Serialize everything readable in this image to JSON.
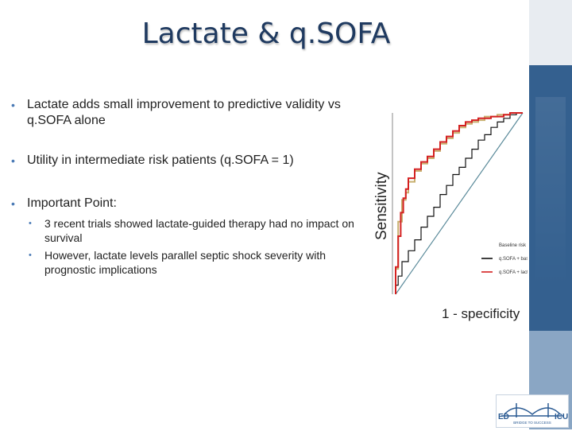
{
  "slide": {
    "title": "Lactate & q.SOFA",
    "bullets": [
      {
        "text": "Lactate adds small improvement to predictive validity vs q.SOFA alone",
        "sub": []
      },
      {
        "text": "Utility in intermediate risk patients (q.SOFA = 1)",
        "sub": []
      },
      {
        "text": "Important Point:",
        "sub": [
          "3 recent trials showed lactate-guided therapy had no impact on survival",
          "However, lactate levels parallel septic shock severity with prognostic implications"
        ]
      }
    ]
  },
  "chart_data": {
    "type": "line",
    "xlabel": "1 - specificity",
    "ylabel": "Sensitivity",
    "xlim": [
      0,
      1
    ],
    "ylim": [
      0,
      1
    ],
    "legend_placement": "bottom-right",
    "series": [
      {
        "name": "Baseline risk",
        "color": "#5a8a9a",
        "x": [
          0,
          1
        ],
        "y": [
          0,
          1
        ]
      },
      {
        "name": "q.SOFA + baseline",
        "color": "#111111",
        "x": [
          0,
          0.02,
          0.05,
          0.1,
          0.15,
          0.2,
          0.25,
          0.3,
          0.35,
          0.4,
          0.45,
          0.5,
          0.55,
          0.6,
          0.65,
          0.7,
          0.75,
          0.8,
          0.85,
          0.9,
          0.95,
          1.0
        ],
        "y": [
          0,
          0.05,
          0.1,
          0.18,
          0.24,
          0.3,
          0.37,
          0.43,
          0.48,
          0.55,
          0.6,
          0.66,
          0.7,
          0.75,
          0.8,
          0.85,
          0.88,
          0.92,
          0.95,
          0.97,
          0.99,
          1.0
        ]
      },
      {
        "name": "q.SOFA + lactate ≥2.0 + baseline",
        "color": "#d42020",
        "x": [
          0,
          0.02,
          0.04,
          0.06,
          0.08,
          0.1,
          0.15,
          0.2,
          0.25,
          0.3,
          0.35,
          0.4,
          0.45,
          0.5,
          0.55,
          0.6,
          0.65,
          0.7,
          0.75,
          0.8,
          0.85,
          0.9,
          0.95,
          1.0
        ],
        "y": [
          0,
          0.15,
          0.32,
          0.45,
          0.53,
          0.58,
          0.64,
          0.69,
          0.73,
          0.76,
          0.8,
          0.84,
          0.87,
          0.9,
          0.93,
          0.95,
          0.96,
          0.97,
          0.97,
          0.98,
          0.98,
          0.99,
          1.0,
          1.0
        ]
      },
      {
        "name": "",
        "color": "#c8b070",
        "x": [
          0,
          0.02,
          0.05,
          0.08,
          0.1,
          0.15,
          0.2,
          0.25,
          0.3,
          0.35,
          0.4,
          0.45,
          0.5,
          0.55,
          0.6,
          0.65,
          0.7,
          0.8,
          0.9,
          1.0
        ],
        "y": [
          0,
          0.14,
          0.4,
          0.52,
          0.56,
          0.62,
          0.68,
          0.72,
          0.75,
          0.79,
          0.83,
          0.86,
          0.89,
          0.92,
          0.94,
          0.95,
          0.96,
          0.98,
          0.99,
          1.0
        ]
      }
    ],
    "legend": [
      "Baseline risk",
      "q.SOFA + baseline",
      "q.SOFA + lactate ≥2.0 + baseline"
    ]
  },
  "logo": {
    "left": "ED",
    "center": "BRIDGE TO SUCCESS",
    "right": "ICU"
  },
  "colors": {
    "title": "#1f3a60",
    "bullet": "#4a7ab5",
    "panel": "#34608f"
  }
}
